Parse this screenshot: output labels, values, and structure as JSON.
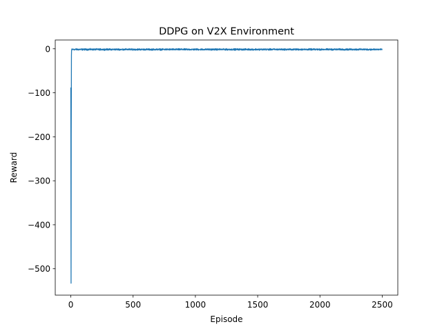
{
  "chart_data": {
    "type": "line",
    "title": "DDPG on V2X Environment",
    "xlabel": "Episode",
    "ylabel": "Reward",
    "xlim": [
      -125,
      2625
    ],
    "ylim": [
      -560,
      20
    ],
    "xticks": [
      0,
      500,
      1000,
      1500,
      2000,
      2500
    ],
    "yticks": [
      0,
      -100,
      -200,
      -300,
      -400,
      -500
    ],
    "ytick_labels": [
      "0",
      "−100",
      "−200",
      "−300",
      "−400",
      "−500"
    ],
    "grid": false,
    "legend": "none",
    "series": [
      {
        "color": "#1f77b4",
        "start_points": [
          [
            0,
            -88
          ],
          [
            1,
            -355
          ],
          [
            2,
            -533
          ],
          [
            3,
            -200
          ],
          [
            4,
            -120
          ],
          [
            5,
            -15
          ],
          [
            6,
            -3
          ],
          [
            7,
            -2
          ]
        ],
        "tail": {
          "from_episode": 8,
          "to_episode": 2499,
          "mean": -1.5,
          "spread": 2.5
        }
      }
    ]
  }
}
